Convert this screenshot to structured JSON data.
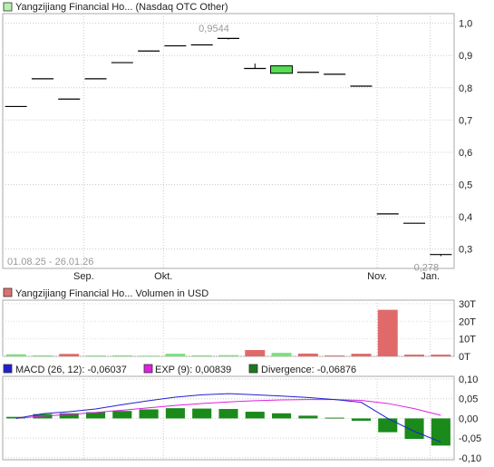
{
  "chart_data": [
    {
      "type": "candlestick",
      "legend_label": "Yangzijiang Financial Ho... (Nasdaq OTC Other)",
      "color_swatch": "#b8f0b0",
      "date_range": "01.08.25 - 26.01.26",
      "x_ticks": [
        "Sep.",
        "Okt.",
        "Nov.",
        "Jan."
      ],
      "y_ticks": [
        "1,0",
        "0,9",
        "0,8",
        "0,7",
        "0,6",
        "0,5",
        "0,4",
        "0,3"
      ],
      "ylim": [
        0.24,
        1.03
      ],
      "annotations": [
        {
          "label": "0,9544",
          "value": 0.9544,
          "index": 8
        },
        {
          "label": "0,278",
          "value": 0.278,
          "index": 16
        }
      ],
      "candles": [
        {
          "open": 0.742,
          "close": 0.742,
          "high": 0.742,
          "low": 0.742
        },
        {
          "open": 0.828,
          "close": 0.828,
          "high": 0.828,
          "low": 0.828
        },
        {
          "open": 0.765,
          "close": 0.765,
          "high": 0.765,
          "low": 0.765
        },
        {
          "open": 0.828,
          "close": 0.828,
          "high": 0.828,
          "low": 0.828
        },
        {
          "open": 0.878,
          "close": 0.878,
          "high": 0.878,
          "low": 0.878
        },
        {
          "open": 0.914,
          "close": 0.914,
          "high": 0.914,
          "low": 0.914
        },
        {
          "open": 0.93,
          "close": 0.93,
          "high": 0.93,
          "low": 0.93
        },
        {
          "open": 0.933,
          "close": 0.933,
          "high": 0.933,
          "low": 0.933
        },
        {
          "open": 0.953,
          "close": 0.953,
          "high": 0.954,
          "low": 0.95
        },
        {
          "open": 0.86,
          "close": 0.86,
          "high": 0.875,
          "low": 0.86
        },
        {
          "open": 0.845,
          "close": 0.868,
          "high": 0.868,
          "low": 0.845
        },
        {
          "open": 0.848,
          "close": 0.848,
          "high": 0.848,
          "low": 0.848
        },
        {
          "open": 0.842,
          "close": 0.842,
          "high": 0.842,
          "low": 0.842
        },
        {
          "open": 0.805,
          "close": 0.805,
          "high": 0.805,
          "low": 0.805
        },
        {
          "open": 0.409,
          "close": 0.409,
          "high": 0.409,
          "low": 0.409
        },
        {
          "open": 0.38,
          "close": 0.38,
          "high": 0.38,
          "low": 0.38
        },
        {
          "open": 0.283,
          "close": 0.283,
          "high": 0.283,
          "low": 0.278
        }
      ]
    },
    {
      "type": "bar",
      "legend_label": "Yangzijiang Financial Ho... Volumen in USD",
      "color_swatch": "#e07070",
      "y_ticks": [
        "30T",
        "20T",
        "10T",
        "0T"
      ],
      "ylim": [
        0,
        32
      ],
      "values": [
        1.2,
        0.6,
        1.4,
        0.5,
        0.6,
        0.4,
        1.5,
        0.6,
        0.7,
        3.6,
        2.0,
        1.6,
        0.5,
        1.5,
        26.5,
        1.0,
        1.0
      ],
      "colors": [
        "green",
        "green",
        "red",
        "green",
        "green",
        "green",
        "green",
        "green",
        "green",
        "red",
        "green",
        "red",
        "red",
        "red",
        "red",
        "red",
        "red"
      ],
      "palette": {
        "green": "#7de07d",
        "red": "#e06a6a"
      }
    },
    {
      "type": "macd",
      "legend": [
        {
          "label": "MACD (26, 12): -0,06037",
          "color": "#2020d0"
        },
        {
          "label": "EXP (9): 0,00839",
          "color": "#e020e0"
        },
        {
          "label": "Divergence: -0,06876",
          "color": "#1a7a1a"
        }
      ],
      "y_ticks": [
        "0,10",
        "0,05",
        "0,00",
        "-0,05",
        "-0,10"
      ],
      "ylim": [
        -0.105,
        0.107
      ],
      "macd": [
        0.0,
        0.012,
        0.017,
        0.024,
        0.035,
        0.045,
        0.054,
        0.06,
        0.063,
        0.06,
        0.057,
        0.053,
        0.048,
        0.041,
        0.0,
        -0.033,
        -0.06
      ],
      "exp": [
        0.0,
        0.006,
        0.01,
        0.015,
        0.021,
        0.027,
        0.033,
        0.038,
        0.042,
        0.045,
        0.047,
        0.048,
        0.048,
        0.046,
        0.038,
        0.025,
        0.008
      ],
      "divergence": [
        0.004,
        0.011,
        0.013,
        0.016,
        0.019,
        0.023,
        0.026,
        0.025,
        0.024,
        0.017,
        0.013,
        0.007,
        0.002,
        -0.006,
        -0.035,
        -0.052,
        -0.069
      ],
      "bar_color": "#1a8a1a"
    }
  ]
}
